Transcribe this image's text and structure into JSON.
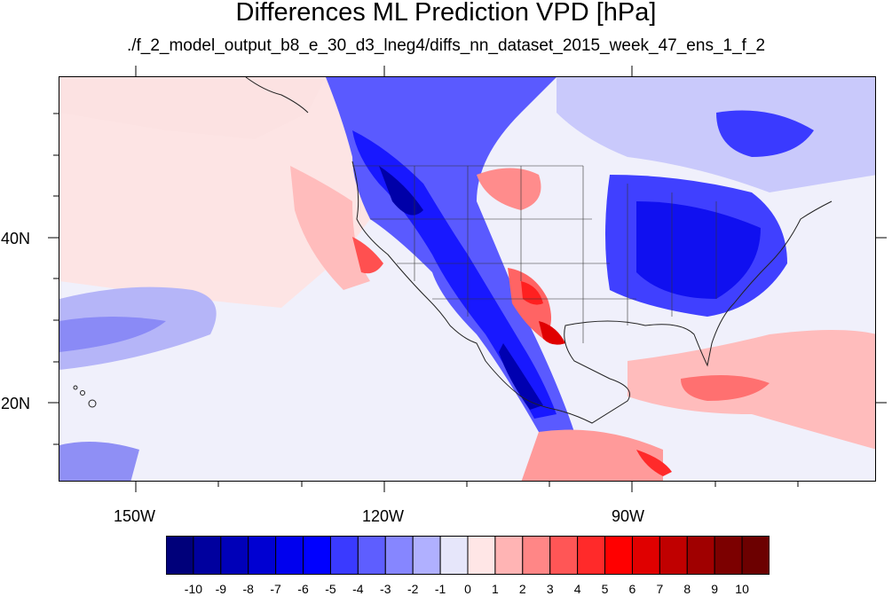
{
  "title": "Differences ML Prediction VPD [hPa]",
  "subtitle": "./f_2_model_output_b8_e_30_d3_lneg4/diffs_nn_dataset_2015_week_47_ens_1_f_2",
  "map": {
    "projection": "cylindrical equidistant",
    "region": "North America / Eastern Pacific",
    "lon_labels": [
      "150W",
      "120W",
      "90W"
    ],
    "lat_labels": [
      "40N",
      "20N"
    ],
    "lon_range": [
      -159.5,
      -60.5
    ],
    "lat_range": [
      11,
      60
    ]
  },
  "colorbar": {
    "labels": [
      "-10",
      "-9",
      "-8",
      "-7",
      "-6",
      "-5",
      "-4",
      "-3",
      "-2",
      "-1",
      "0",
      "1",
      "2",
      "3",
      "4",
      "5",
      "6",
      "7",
      "8",
      "9",
      "10"
    ],
    "colors": [
      "#00007a",
      "#00009e",
      "#0000b8",
      "#0000d2",
      "#0000ee",
      "#0000ff",
      "#3a3aff",
      "#5e5eff",
      "#8686ff",
      "#b0b0ff",
      "#e6e6fa",
      "#ffe6e6",
      "#ffb4b4",
      "#ff8686",
      "#ff5656",
      "#ff2a2a",
      "#ff0000",
      "#e00000",
      "#c00000",
      "#a00000",
      "#7c0000",
      "#6c0000"
    ]
  }
}
